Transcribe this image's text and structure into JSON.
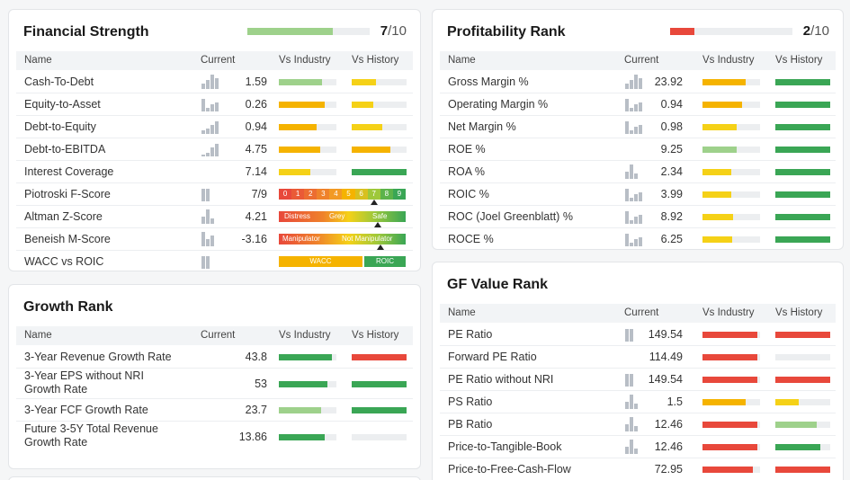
{
  "colors": {
    "green": "#3aa655",
    "light_green": "#9ed18b",
    "yellow": "#f5d117",
    "orange": "#f5b300",
    "red": "#e8483b",
    "bar_bg": "#eceef0"
  },
  "financial_strength": {
    "title": "Financial Strength",
    "score": "7",
    "max": "/10",
    "fill": 0.7,
    "headers": {
      "name": "Name",
      "current": "Current",
      "vs_industry": "Vs Industry",
      "vs_history": "Vs History"
    },
    "rows": [
      {
        "name": "Cash-To-Debt",
        "value": "1.59",
        "industry": {
          "pct": 0.75,
          "color": "light_green"
        },
        "history": {
          "pct": 0.45,
          "color": "yellow"
        }
      },
      {
        "name": "Equity-to-Asset",
        "value": "0.26",
        "industry": {
          "pct": 0.8,
          "color": "orange"
        },
        "history": {
          "pct": 0.4,
          "color": "yellow"
        }
      },
      {
        "name": "Debt-to-Equity",
        "value": "0.94",
        "industry": {
          "pct": 0.65,
          "color": "orange"
        },
        "history": {
          "pct": 0.55,
          "color": "yellow"
        }
      },
      {
        "name": "Debt-to-EBITDA",
        "value": "4.75",
        "industry": {
          "pct": 0.72,
          "color": "orange"
        },
        "history": {
          "pct": 0.7,
          "color": "orange"
        }
      },
      {
        "name": "Interest Coverage",
        "value": "7.14",
        "industry": {
          "pct": 0.55,
          "color": "yellow"
        },
        "history": {
          "pct": 1.0,
          "color": "green"
        }
      },
      {
        "name": "Piotroski F-Score",
        "value": "7/9",
        "scale_labels": [
          "0",
          "1",
          "2",
          "3",
          "4",
          "5",
          "6",
          "7",
          "8",
          "9"
        ],
        "marker_pct": 0.75
      },
      {
        "name": "Altman Z-Score",
        "value": "4.21",
        "zones": [
          "Distress",
          "Grey",
          "Safe"
        ],
        "marker_pct": 0.78
      },
      {
        "name": "Beneish M-Score",
        "value": "-3.16",
        "zones": [
          "Manipulator",
          "Not Manipulator"
        ],
        "marker_pct": 0.8
      },
      {
        "name": "WACC vs ROIC",
        "value": "",
        "zones": [
          "WACC",
          "ROIC"
        ]
      }
    ]
  },
  "growth_rank": {
    "title": "Growth Rank",
    "headers": {
      "name": "Name",
      "current": "Current",
      "vs_industry": "Vs Industry",
      "vs_history": "Vs History"
    },
    "rows": [
      {
        "name": "3-Year Revenue Growth Rate",
        "value": "43.8",
        "industry": {
          "pct": 0.92,
          "color": "green"
        },
        "history": {
          "pct": 1.0,
          "color": "red"
        }
      },
      {
        "name": "3-Year EPS without NRI Growth Rate",
        "value": "53",
        "industry": {
          "pct": 0.85,
          "color": "green"
        },
        "history": {
          "pct": 1.0,
          "color": "green"
        }
      },
      {
        "name": "3-Year FCF Growth Rate",
        "value": "23.7",
        "industry": {
          "pct": 0.73,
          "color": "light_green"
        },
        "history": {
          "pct": 1.0,
          "color": "green"
        }
      },
      {
        "name": "Future 3-5Y Total Revenue Growth Rate",
        "value": "13.86",
        "industry": {
          "pct": 0.8,
          "color": "green"
        },
        "history": {
          "pct": 0.0,
          "color": "green"
        }
      }
    ]
  },
  "profitability_rank": {
    "title": "Profitability Rank",
    "score": "2",
    "max": "/10",
    "fill": 0.2,
    "headers": {
      "name": "Name",
      "current": "Current",
      "vs_industry": "Vs Industry",
      "vs_history": "Vs History"
    },
    "rows": [
      {
        "name": "Gross Margin %",
        "value": "23.92",
        "industry": {
          "pct": 0.75,
          "color": "orange"
        },
        "history": {
          "pct": 1.0,
          "color": "green"
        }
      },
      {
        "name": "Operating Margin %",
        "value": "0.94",
        "industry": {
          "pct": 0.68,
          "color": "orange"
        },
        "history": {
          "pct": 1.0,
          "color": "green"
        }
      },
      {
        "name": "Net Margin %",
        "value": "0.98",
        "industry": {
          "pct": 0.6,
          "color": "yellow"
        },
        "history": {
          "pct": 1.0,
          "color": "green"
        }
      },
      {
        "name": "ROE %",
        "value": "9.25",
        "industry": {
          "pct": 0.6,
          "color": "light_green"
        },
        "history": {
          "pct": 1.0,
          "color": "green"
        }
      },
      {
        "name": "ROA %",
        "value": "2.34",
        "industry": {
          "pct": 0.5,
          "color": "yellow"
        },
        "history": {
          "pct": 1.0,
          "color": "green"
        }
      },
      {
        "name": "ROIC %",
        "value": "3.99",
        "industry": {
          "pct": 0.5,
          "color": "yellow"
        },
        "history": {
          "pct": 1.0,
          "color": "green"
        }
      },
      {
        "name": "ROC (Joel Greenblatt) %",
        "value": "8.92",
        "industry": {
          "pct": 0.53,
          "color": "yellow"
        },
        "history": {
          "pct": 1.0,
          "color": "green"
        }
      },
      {
        "name": "ROCE %",
        "value": "6.25",
        "industry": {
          "pct": 0.52,
          "color": "yellow"
        },
        "history": {
          "pct": 1.0,
          "color": "green"
        }
      }
    ]
  },
  "gf_value_rank": {
    "title": "GF Value Rank",
    "headers": {
      "name": "Name",
      "current": "Current",
      "vs_industry": "Vs Industry",
      "vs_history": "Vs History"
    },
    "rows": [
      {
        "name": "PE Ratio",
        "value": "149.54",
        "industry": {
          "pct": 0.95,
          "color": "red"
        },
        "history": {
          "pct": 1.0,
          "color": "red"
        }
      },
      {
        "name": "Forward PE Ratio",
        "value": "114.49",
        "industry": {
          "pct": 0.95,
          "color": "red"
        },
        "history": {
          "pct": 0.0,
          "color": "red"
        }
      },
      {
        "name": "PE Ratio without NRI",
        "value": "149.54",
        "industry": {
          "pct": 0.95,
          "color": "red"
        },
        "history": {
          "pct": 1.0,
          "color": "red"
        }
      },
      {
        "name": "PS Ratio",
        "value": "1.5",
        "industry": {
          "pct": 0.75,
          "color": "orange"
        },
        "history": {
          "pct": 0.42,
          "color": "yellow"
        }
      },
      {
        "name": "PB Ratio",
        "value": "12.46",
        "industry": {
          "pct": 0.95,
          "color": "red"
        },
        "history": {
          "pct": 0.75,
          "color": "light_green"
        }
      },
      {
        "name": "Price-to-Tangible-Book",
        "value": "12.46",
        "industry": {
          "pct": 0.95,
          "color": "red"
        },
        "history": {
          "pct": 0.82,
          "color": "green"
        }
      },
      {
        "name": "Price-to-Free-Cash-Flow",
        "value": "72.95",
        "industry": {
          "pct": 0.88,
          "color": "red"
        },
        "history": {
          "pct": 1.0,
          "color": "red"
        }
      }
    ]
  }
}
